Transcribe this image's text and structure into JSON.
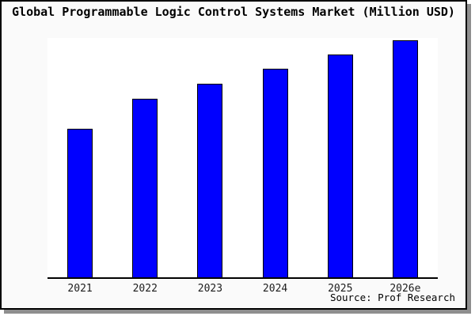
{
  "title": "Global Programmable Logic Control Systems Market (Million USD)",
  "source": "Source: Prof Research",
  "colors": {
    "bar_fill": "#0000ff",
    "bar_border": "#000000",
    "panel_background": "#fafafa",
    "plot_background": "#ffffff",
    "axis": "#000000",
    "panel_border": "#000000",
    "panel_shadow": "#8e8e8e",
    "title_text": "#000000",
    "tick_text": "#1c1c1c"
  },
  "chart_data": {
    "type": "bar",
    "title": "Global Programmable Logic Control Systems Market (Million USD)",
    "categories": [
      "2021",
      "2022",
      "2023",
      "2024",
      "2025",
      "2026e"
    ],
    "values": [
      62.7,
      75.3,
      81.7,
      88.0,
      94.0,
      100.0
    ],
    "value_note": "no y-axis or data labels shown; values are relative bar heights scaled to max = 100",
    "xlabel": "",
    "ylabel": "",
    "ylim": [
      0,
      100
    ],
    "grid": false,
    "legend": false,
    "y_axis_visible": false,
    "annotation": "Source: Prof Research"
  }
}
